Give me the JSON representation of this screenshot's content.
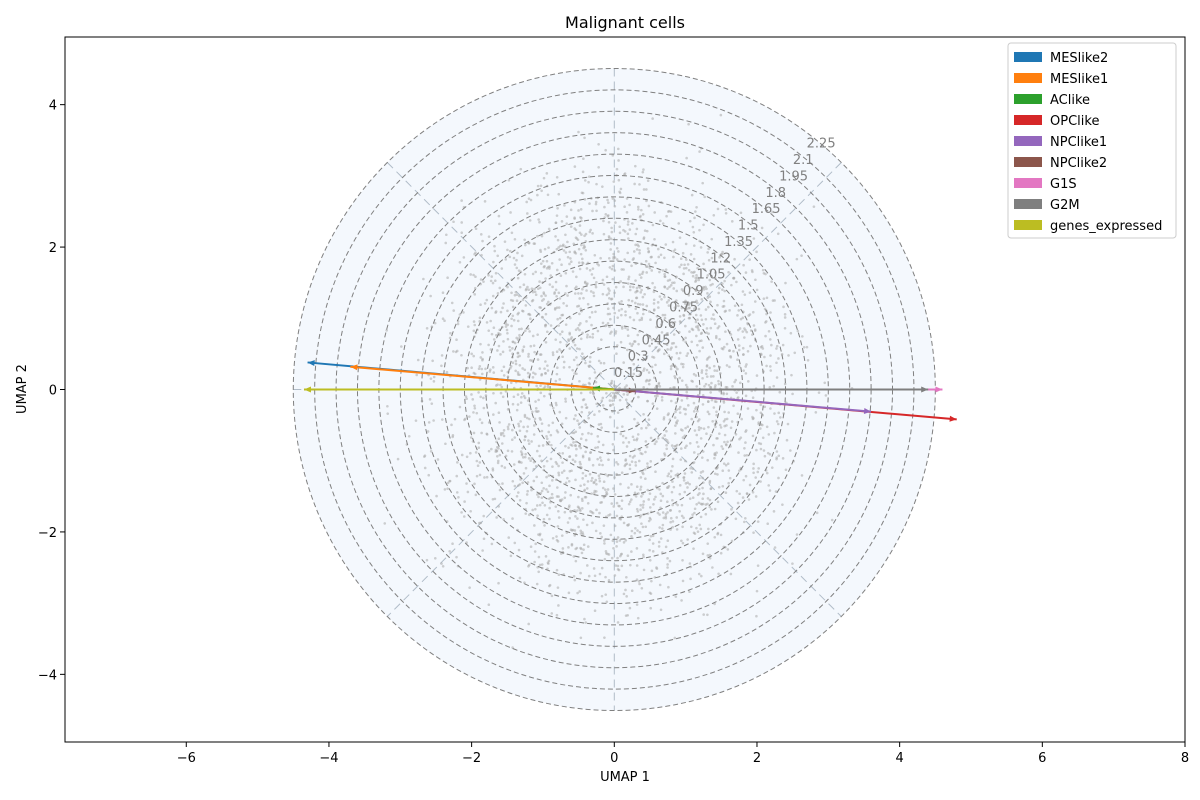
{
  "chart_data": {
    "type": "scatter",
    "title": "Malignant cells",
    "xlabel": "UMAP 1",
    "ylabel": "UMAP 2",
    "xlim": [
      -7.7,
      8.0
    ],
    "ylim": [
      -4.95,
      4.95
    ],
    "xticks": [
      -6,
      -4,
      -2,
      0,
      2,
      4,
      6,
      8
    ],
    "yticks": [
      -4,
      -2,
      0,
      2,
      4
    ],
    "xtick_labels": [
      "−6",
      "−4",
      "−2",
      "0",
      "2",
      "4",
      "6",
      "8"
    ],
    "ytick_labels": [
      "−4",
      "−2",
      "0",
      "2",
      "4"
    ],
    "rings": {
      "radii": [
        0.3,
        0.6,
        0.9,
        1.2,
        1.5,
        1.8,
        2.1,
        2.4,
        2.7,
        3.0,
        3.3,
        3.6,
        3.9,
        4.2,
        4.5
      ],
      "labels": [
        "0.15",
        "0.3",
        "0.45",
        "0.6",
        "0.75",
        "0.9",
        "1.05",
        "1.2",
        "1.35",
        "1.5",
        "1.65",
        "1.8",
        "1.95",
        "2.1",
        "2.25"
      ],
      "line_color": "#808080",
      "fill_color": "#f4f8fd"
    },
    "cloud": {
      "description_free": true,
      "point_color": "#a9a9a9",
      "count": 2600
    },
    "series": [
      {
        "name": "MESlike2",
        "color": "#1f77b4",
        "start": [
          0.0,
          0.0
        ],
        "end": [
          -4.3,
          0.38
        ]
      },
      {
        "name": "MESlike1",
        "color": "#ff7f0e",
        "start": [
          0.0,
          0.0
        ],
        "end": [
          -3.7,
          0.32
        ]
      },
      {
        "name": "AClike",
        "color": "#2ca02c",
        "start": [
          0.0,
          0.0
        ],
        "end": [
          -0.3,
          0.02
        ]
      },
      {
        "name": "OPClike",
        "color": "#d62728",
        "start": [
          0.0,
          0.0
        ],
        "end": [
          4.8,
          -0.42
        ]
      },
      {
        "name": "NPClike1",
        "color": "#9467bd",
        "start": [
          0.0,
          0.0
        ],
        "end": [
          3.6,
          -0.31
        ]
      },
      {
        "name": "NPClike2",
        "color": "#8c564b",
        "start": [
          0.0,
          0.0
        ],
        "end": [
          0.3,
          -0.02
        ]
      },
      {
        "name": "G1S",
        "color": "#e377c2",
        "start": [
          0.0,
          0.0
        ],
        "end": [
          4.6,
          0.0
        ]
      },
      {
        "name": "G2M",
        "color": "#7f7f7f",
        "start": [
          0.0,
          0.0
        ],
        "end": [
          4.4,
          0.0
        ]
      },
      {
        "name": "genes_expressed",
        "color": "#bcbd22",
        "start": [
          0.0,
          0.0
        ],
        "end": [
          -4.35,
          0.0
        ]
      }
    ],
    "legend_position": "top-right",
    "grid": false
  }
}
